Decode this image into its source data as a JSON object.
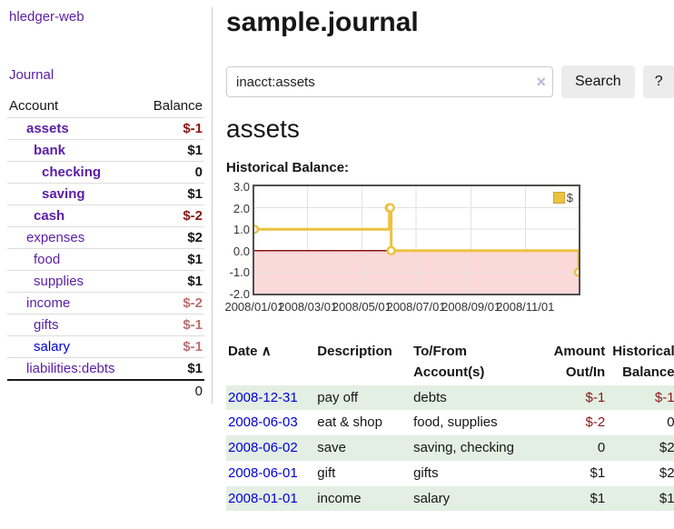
{
  "sidebar": {
    "app_title": "hledger-web",
    "nav_journal": "Journal",
    "accounts_table": {
      "header_account": "Account",
      "header_balance": "Balance",
      "rows": [
        {
          "label": "assets",
          "balance": "$-1",
          "indent": 1,
          "bold": true,
          "link_color": "purple",
          "balance_tone": "dark-red"
        },
        {
          "label": "bank",
          "balance": "$1",
          "indent": 2,
          "bold": true,
          "link_color": "purple",
          "balance_tone": "default"
        },
        {
          "label": "checking",
          "balance": "0",
          "indent": 3,
          "bold": true,
          "link_color": "purple",
          "balance_tone": "default"
        },
        {
          "label": "saving",
          "balance": "$1",
          "indent": 3,
          "bold": true,
          "link_color": "purple",
          "balance_tone": "default"
        },
        {
          "label": "cash",
          "balance": "$-2",
          "indent": 2,
          "bold": true,
          "link_color": "purple",
          "balance_tone": "dark-red"
        },
        {
          "label": "expenses",
          "balance": "$2",
          "indent": 1,
          "bold": false,
          "link_color": "purple",
          "balance_tone": "default"
        },
        {
          "label": "food",
          "balance": "$1",
          "indent": 2,
          "bold": false,
          "link_color": "purple",
          "balance_tone": "default"
        },
        {
          "label": "supplies",
          "balance": "$1",
          "indent": 2,
          "bold": false,
          "link_color": "purple",
          "balance_tone": "default"
        },
        {
          "label": "income",
          "balance": "$-2",
          "indent": 1,
          "bold": false,
          "link_color": "purple",
          "balance_tone": "soft-red"
        },
        {
          "label": "gifts",
          "balance": "$-1",
          "indent": 2,
          "bold": false,
          "link_color": "purple",
          "balance_tone": "soft-red"
        },
        {
          "label": "salary",
          "balance": "$-1",
          "indent": 2,
          "bold": false,
          "link_color": "blue",
          "balance_tone": "soft-red"
        },
        {
          "label": "liabilities:debts",
          "balance": "$1",
          "indent": 1,
          "bold": false,
          "link_color": "purple",
          "balance_tone": "default"
        }
      ],
      "total": "0"
    }
  },
  "header": {
    "title": "sample.journal"
  },
  "search": {
    "value": "inacct:assets",
    "clear_icon": "×",
    "button_label": "Search",
    "help_label": "?"
  },
  "account_page": {
    "title": "assets",
    "chart_label": "Historical Balance:"
  },
  "chart_data": {
    "type": "line",
    "title": "Historical Balance",
    "step": true,
    "x_range": [
      "2008-01-01",
      "2008-12-31"
    ],
    "ylim": [
      -2,
      3
    ],
    "y_ticks": [
      "3.0",
      "2.0",
      "1.0",
      "0.0",
      "-1.0",
      "-2.0"
    ],
    "x_ticks": [
      "2008/01/01",
      "2008/03/01",
      "2008/05/01",
      "2008/07/01",
      "2008/09/01",
      "2008/11/01"
    ],
    "series": [
      {
        "name": "$",
        "color": "#edc240",
        "points": [
          {
            "x": "2008-01-01",
            "y": 1
          },
          {
            "x": "2008-06-01",
            "y": 2
          },
          {
            "x": "2008-06-02",
            "y": 2
          },
          {
            "x": "2008-06-03",
            "y": 0
          },
          {
            "x": "2008-12-31",
            "y": -1
          }
        ]
      }
    ],
    "legend": {
      "label": "$",
      "position": "top-right"
    },
    "grid_color": "#e2e2e2",
    "negative_region_color": "#fbd9d9",
    "zero_line_color": "#8b1515",
    "border_color": "#4f4f4f"
  },
  "register_table": {
    "sort_indicator": "∧",
    "headers": {
      "date": "Date",
      "description": "Description",
      "accounts": "To/From Account(s)",
      "amount": "Amount Out/In",
      "balance": "Historical Balance"
    },
    "rows": [
      {
        "date": "2008-12-31",
        "description": "pay off",
        "accounts": "debts",
        "amount": "$-1",
        "balance": "$-1",
        "amount_tone": "dark-red",
        "balance_tone": "dark-red",
        "stripe": true
      },
      {
        "date": "2008-06-03",
        "description": "eat & shop",
        "accounts": "food, supplies",
        "amount": "$-2",
        "balance": "0",
        "amount_tone": "dark-red",
        "balance_tone": "default",
        "stripe": false
      },
      {
        "date": "2008-06-02",
        "description": "save",
        "accounts": "saving, checking",
        "amount": "0",
        "balance": "$2",
        "amount_tone": "default",
        "balance_tone": "default",
        "stripe": true
      },
      {
        "date": "2008-06-01",
        "description": "gift",
        "accounts": "gifts",
        "amount": "$1",
        "balance": "$2",
        "amount_tone": "default",
        "balance_tone": "default",
        "stripe": false
      },
      {
        "date": "2008-01-01",
        "description": "income",
        "accounts": "salary",
        "amount": "$1",
        "balance": "$1",
        "amount_tone": "default",
        "balance_tone": "default",
        "stripe": true
      }
    ]
  },
  "colors": {
    "link_purple": "#5a1ea6",
    "link_blue": "#0000dd",
    "negative_strong": "#8b1515",
    "negative_soft": "#bc6f6f",
    "row_stripe_green": "#e3efe3",
    "series_gold": "#edc240"
  }
}
